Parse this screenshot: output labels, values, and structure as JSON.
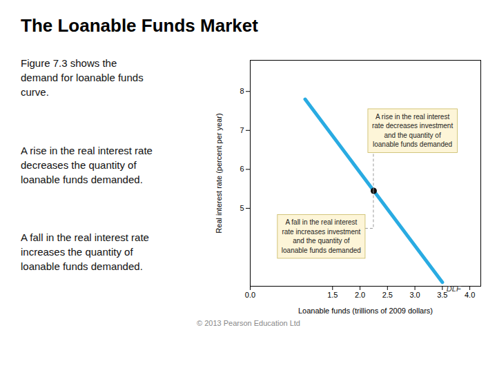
{
  "chart_data": {
    "type": "line",
    "title": "The Loanable Funds Market",
    "x": [
      1.0,
      3.5
    ],
    "values": [
      7.8,
      3.1
    ],
    "color": "#29abe2",
    "line_label": "DLF",
    "highlight": {
      "x": 2.25,
      "y": 5.45,
      "color": "#111111"
    },
    "annotations": [
      "A rise in the real interest\nrate decreases investment\nand the quantity of\nloanable funds demanded",
      "A fall in the real interest\nrate increases investment\nand the quantity of\nloanable funds demanded"
    ],
    "xlabel": "Loanable funds (trillions of 2009 dollars)",
    "ylabel": "Real interest rate (percent per year)",
    "xlim": [
      0,
      4.2
    ],
    "ylim": [
      3.0,
      8.8
    ],
    "xticks": [
      {
        "value": 0,
        "label": "0.0"
      },
      1.5,
      {
        "value": 2.0,
        "label": "2.0"
      },
      2.5,
      {
        "value": 3.0,
        "label": "3.0"
      },
      3.5,
      {
        "value": 4.0,
        "label": "4.0"
      }
    ],
    "yticks": [
      5,
      6,
      7,
      8
    ],
    "text": [
      "Figure 7.3 shows the\ndemand for loanable funds\ncurve.",
      "A rise in the real interest rate\ndecreases the quantity of\nloanable funds demanded.",
      "A fall in the real interest rate\nincreases the quantity of\nloanable funds demanded."
    ],
    "caption": "© 2013 Pearson Education Ltd"
  }
}
